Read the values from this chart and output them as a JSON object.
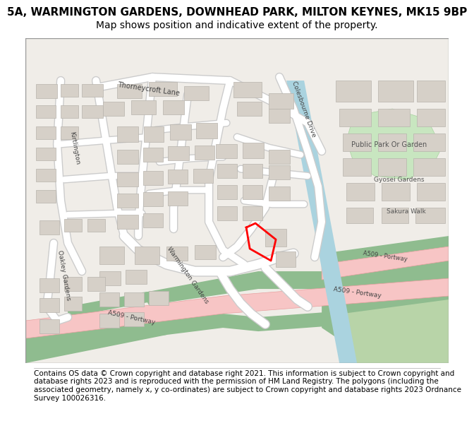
{
  "title_line1": "5A, WARMINGTON GARDENS, DOWNHEAD PARK, MILTON KEYNES, MK15 9BP",
  "title_line2": "Map shows position and indicative extent of the property.",
  "footer_text": "Contains OS data © Crown copyright and database right 2021. This information is subject to Crown copyright and database rights 2023 and is reproduced with the permission of HM Land Registry. The polygons (including the associated geometry, namely x, y co-ordinates) are subject to Crown copyright and database rights 2023 Ordnance Survey 100026316.",
  "bg_color": "#f5f4f2",
  "map_bg": "#f0ede8",
  "road_color": "#ffffff",
  "road_outline": "#cccccc",
  "building_color": "#d6d0c8",
  "building_outline": "#bbbbbb",
  "water_color": "#aad3df",
  "green_color": "#8fbc8f",
  "park_color": "#c8e6c0",
  "a_road_color": "#f7c5c5",
  "a_road_outline": "#e8a0a0",
  "red_outline_color": "#ff0000",
  "title_fontsize": 11,
  "subtitle_fontsize": 10,
  "footer_fontsize": 7.5,
  "label_fontsize": 8
}
